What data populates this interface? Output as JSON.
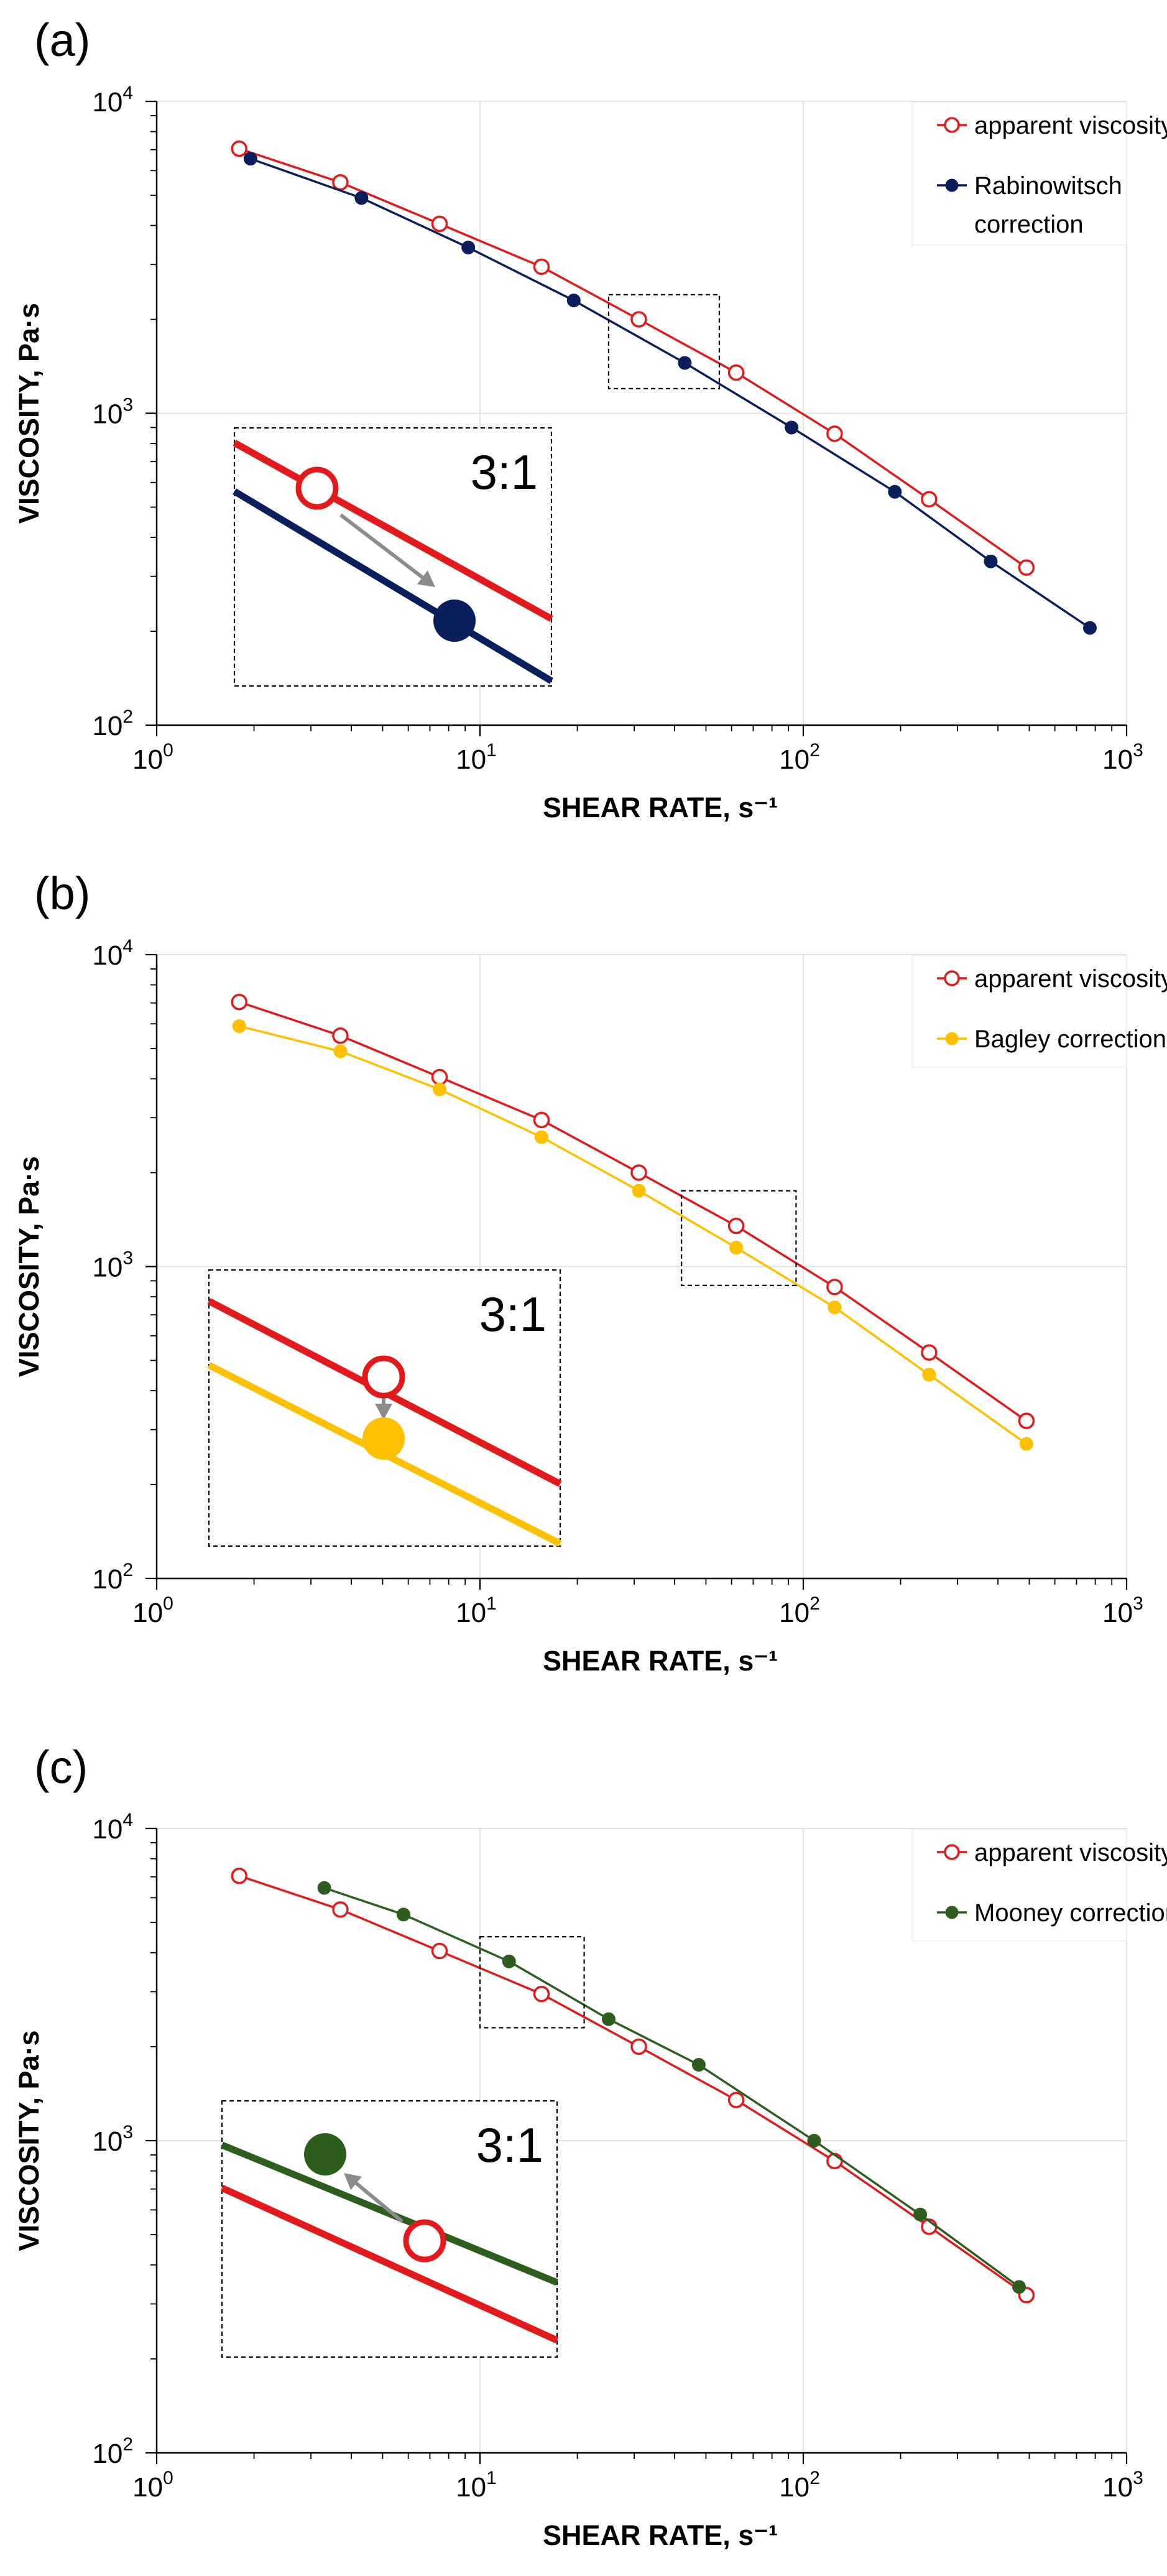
{
  "figure": {
    "panels": [
      "(a)",
      "(b)",
      "(c)"
    ]
  },
  "chart_data": [
    {
      "type": "line",
      "panel_label": "(a)",
      "xscale": "log",
      "yscale": "log",
      "xlim": [
        1,
        1000
      ],
      "ylim": [
        100,
        10000
      ],
      "xlabel": "SHEAR RATE, s⁻¹",
      "ylabel": "VISCOSITY, Pa·s",
      "x_ticks": [
        {
          "base": "10",
          "exp": "0"
        },
        {
          "base": "10",
          "exp": "1"
        },
        {
          "base": "10",
          "exp": "2"
        },
        {
          "base": "10",
          "exp": "3"
        }
      ],
      "y_ticks": [
        {
          "base": "10",
          "exp": "2"
        },
        {
          "base": "10",
          "exp": "3"
        },
        {
          "base": "10",
          "exp": "4"
        }
      ],
      "grid": true,
      "legend_position": "top-right",
      "series": [
        {
          "name": "apparent viscosity",
          "legend_lines": [
            "apparent viscosity"
          ],
          "marker": "open-circle",
          "color": "#e31a1c",
          "points": [
            [
              1.8,
              7050
            ],
            [
              3.7,
              5500
            ],
            [
              7.5,
              4050
            ],
            [
              15.5,
              2950
            ],
            [
              31,
              2000
            ],
            [
              62,
              1350
            ],
            [
              125,
              860
            ],
            [
              245,
              530
            ],
            [
              490,
              320
            ]
          ]
        },
        {
          "name": "Rabinowitsch correction",
          "legend_lines": [
            "Rabinowitsch",
            "correction"
          ],
          "marker": "filled-circle",
          "color": "#0b1f5c",
          "points": [
            [
              1.95,
              6550
            ],
            [
              4.3,
              4900
            ],
            [
              9.2,
              3400
            ],
            [
              19.5,
              2300
            ],
            [
              43,
              1450
            ],
            [
              92,
              900
            ],
            [
              192,
              560
            ],
            [
              380,
              335
            ],
            [
              770,
              205
            ]
          ]
        }
      ],
      "zoom_box": {
        "x": [
          25,
          55
        ],
        "y": [
          1200,
          2400
        ]
      },
      "inset": {
        "ratio_text": "3:1",
        "arrow_direction": "down-right",
        "note": "Zoom of boxed region: open circle shifted to corrected filled circle"
      }
    },
    {
      "type": "line",
      "panel_label": "(b)",
      "xscale": "log",
      "yscale": "log",
      "xlim": [
        1,
        1000
      ],
      "ylim": [
        100,
        10000
      ],
      "xlabel": "SHEAR RATE, s⁻¹",
      "ylabel": "VISCOSITY, Pa·s",
      "x_ticks": [
        {
          "base": "10",
          "exp": "0"
        },
        {
          "base": "10",
          "exp": "1"
        },
        {
          "base": "10",
          "exp": "2"
        },
        {
          "base": "10",
          "exp": "3"
        }
      ],
      "y_ticks": [
        {
          "base": "10",
          "exp": "2"
        },
        {
          "base": "10",
          "exp": "3"
        },
        {
          "base": "10",
          "exp": "4"
        }
      ],
      "grid": true,
      "legend_position": "top-right",
      "series": [
        {
          "name": "apparent viscosity",
          "legend_lines": [
            "apparent viscosity"
          ],
          "marker": "open-circle",
          "color": "#e31a1c",
          "points": [
            [
              1.8,
              7050
            ],
            [
              3.7,
              5500
            ],
            [
              7.5,
              4050
            ],
            [
              15.5,
              2950
            ],
            [
              31,
              2000
            ],
            [
              62,
              1350
            ],
            [
              125,
              860
            ],
            [
              245,
              530
            ],
            [
              490,
              320
            ]
          ]
        },
        {
          "name": "Bagley correction",
          "legend_lines": [
            "Bagley correction"
          ],
          "marker": "filled-circle",
          "color": "#ffc000",
          "points": [
            [
              1.8,
              5900
            ],
            [
              3.7,
              4900
            ],
            [
              7.5,
              3700
            ],
            [
              15.5,
              2600
            ],
            [
              31,
              1750
            ],
            [
              62,
              1150
            ],
            [
              125,
              740
            ],
            [
              245,
              450
            ],
            [
              490,
              270
            ]
          ]
        }
      ],
      "zoom_box": {
        "x": [
          42,
          95
        ],
        "y": [
          870,
          1750
        ]
      },
      "inset": {
        "ratio_text": "3:1",
        "arrow_direction": "down",
        "note": "Zoom of boxed region: open circle shifted down to corrected filled circle"
      }
    },
    {
      "type": "line",
      "panel_label": "(c)",
      "xscale": "log",
      "yscale": "log",
      "xlim": [
        1,
        1000
      ],
      "ylim": [
        100,
        10000
      ],
      "xlabel": "SHEAR RATE, s⁻¹",
      "ylabel": "VISCOSITY, Pa·s",
      "x_ticks": [
        {
          "base": "10",
          "exp": "0"
        },
        {
          "base": "10",
          "exp": "1"
        },
        {
          "base": "10",
          "exp": "2"
        },
        {
          "base": "10",
          "exp": "3"
        }
      ],
      "y_ticks": [
        {
          "base": "10",
          "exp": "2"
        },
        {
          "base": "10",
          "exp": "3"
        },
        {
          "base": "10",
          "exp": "4"
        }
      ],
      "grid": true,
      "legend_position": "top-right",
      "series": [
        {
          "name": "apparent viscosity",
          "legend_lines": [
            "apparent viscosity"
          ],
          "marker": "open-circle",
          "color": "#e31a1c",
          "points": [
            [
              1.8,
              7050
            ],
            [
              3.7,
              5500
            ],
            [
              7.5,
              4050
            ],
            [
              15.5,
              2950
            ],
            [
              31,
              2000
            ],
            [
              62,
              1350
            ],
            [
              125,
              860
            ],
            [
              245,
              530
            ],
            [
              490,
              320
            ]
          ]
        },
        {
          "name": "Mooney correction",
          "legend_lines": [
            "Mooney correction"
          ],
          "marker": "filled-circle",
          "color": "#2e5e1e",
          "points": [
            [
              3.3,
              6450
            ],
            [
              5.8,
              5300
            ],
            [
              12.3,
              3750
            ],
            [
              25,
              2450
            ],
            [
              47.5,
              1750
            ],
            [
              108,
              1000
            ],
            [
              230,
              580
            ],
            [
              465,
              340
            ]
          ]
        }
      ],
      "zoom_box": {
        "x": [
          10,
          21
        ],
        "y": [
          2300,
          4500
        ]
      },
      "inset": {
        "ratio_text": "3:1",
        "arrow_direction": "up-left",
        "note": "Zoom of boxed region: open circle shifted up to corrected filled circle"
      }
    }
  ]
}
